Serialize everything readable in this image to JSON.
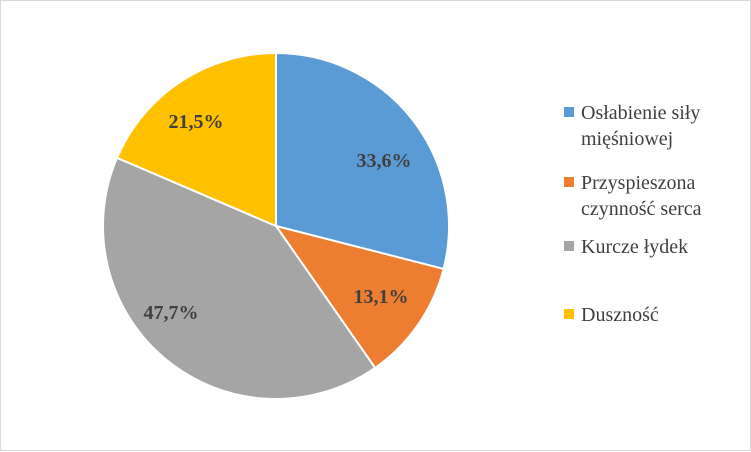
{
  "chart_data": {
    "type": "pie",
    "title": "",
    "series": [
      {
        "name": "",
        "values": [
          33.6,
          13.1,
          47.7,
          21.5
        ]
      }
    ],
    "categories": [
      "Osłabienie siły mięśniowej",
      "Przyspieszona czynność serca",
      "Kurcze łydek",
      "Duszność"
    ],
    "data_labels": [
      "33,6%",
      "13,1%",
      "47,7%",
      "21,5%"
    ],
    "legend_lines": [
      [
        "Osłabienie siły",
        "mięśniowej"
      ],
      [
        "Przyspieszona",
        "czynność serca"
      ],
      [
        "Kurcze łydek"
      ],
      [
        "Duszność"
      ]
    ],
    "colors": [
      "#5b9bd5",
      "#ed7d31",
      "#a5a5a5",
      "#ffc000"
    ],
    "start_angle_deg": 0,
    "direction": "clockwise",
    "legend_position": "right"
  }
}
